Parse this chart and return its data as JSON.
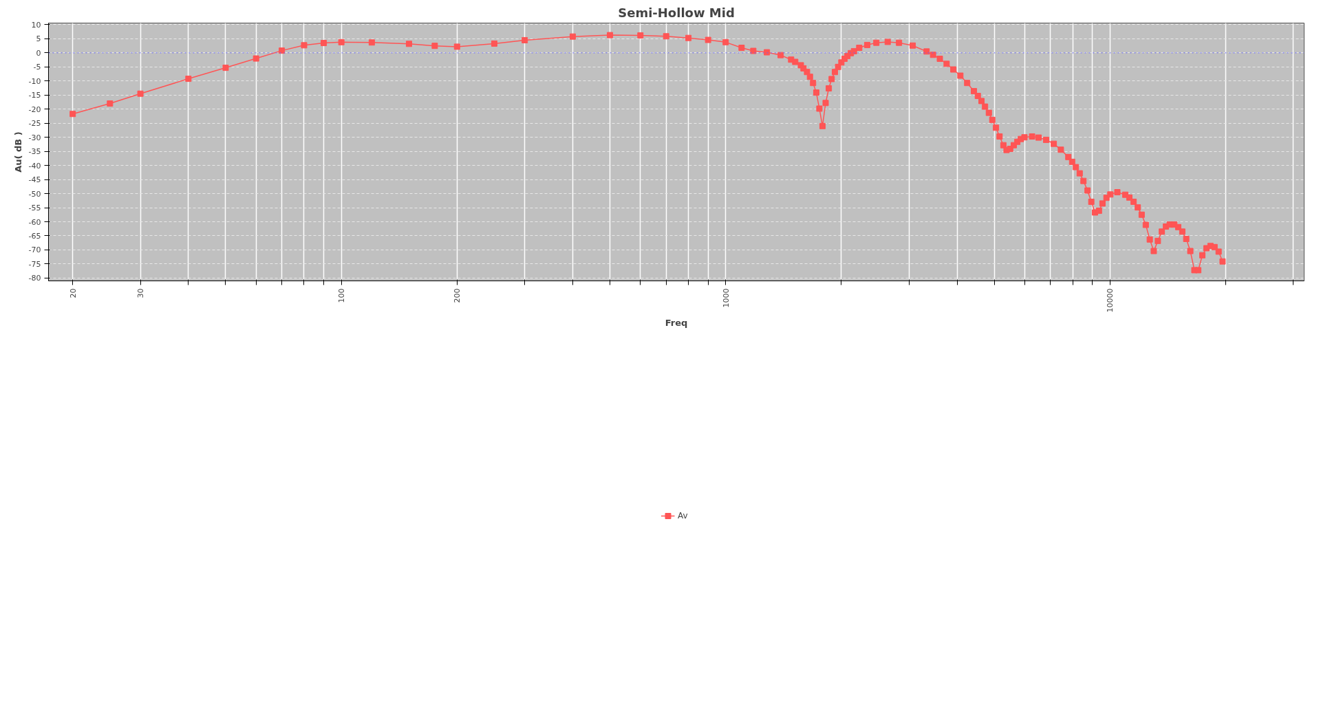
{
  "chart_data": {
    "type": "line",
    "title": "Semi-Hollow Mid",
    "xlabel": "Freq",
    "ylabel": "Au( dB )",
    "log": "x",
    "grid": true,
    "legend": "bottom",
    "marker": "square",
    "line_style": "solid",
    "xlim": [
      17.3,
      32000
    ],
    "ylim": [
      -81,
      10.6
    ],
    "xticks": [
      20,
      30,
      {
        "value": 40,
        "label": null
      },
      {
        "value": 50,
        "label": null
      },
      {
        "value": 60,
        "label": null
      },
      {
        "value": 70,
        "label": null
      },
      {
        "value": 80,
        "label": null
      },
      {
        "value": 90,
        "label": null
      },
      100,
      200,
      {
        "value": 300,
        "label": null
      },
      {
        "value": 400,
        "label": null
      },
      {
        "value": 500,
        "label": null
      },
      {
        "value": 600,
        "label": null
      },
      {
        "value": 700,
        "label": null
      },
      {
        "value": 800,
        "label": null
      },
      {
        "value": 900,
        "label": null
      },
      1000,
      {
        "value": 2000,
        "label": null
      },
      {
        "value": 3000,
        "label": null
      },
      {
        "value": 4000,
        "label": null
      },
      {
        "value": 5000,
        "label": null
      },
      {
        "value": 6000,
        "label": null
      },
      {
        "value": 7000,
        "label": null
      },
      {
        "value": 8000,
        "label": null
      },
      {
        "value": 9000,
        "label": null
      },
      10000,
      {
        "value": 20000,
        "label": null
      },
      {
        "value": 30000,
        "label": null
      }
    ],
    "yticks": [
      10,
      5,
      0,
      -5,
      -10,
      -15,
      -20,
      -25,
      -30,
      -35,
      -40,
      -45,
      -50,
      -55,
      -60,
      -65,
      -70,
      -75,
      -80
    ],
    "ref_lines": [
      {
        "axis": "y",
        "value": 0,
        "label": null,
        "color": "#6666ff",
        "line_style": "dotted"
      }
    ],
    "series": [
      {
        "name": "Av",
        "color": "#ff5555",
        "x": [
          20,
          25,
          30,
          40,
          50,
          60,
          70,
          80,
          90,
          100,
          120,
          150,
          175,
          200,
          250,
          300,
          400,
          500,
          600,
          700,
          800,
          900,
          1000,
          1100,
          1180,
          1280,
          1390,
          1480,
          1517,
          1569,
          1594,
          1628,
          1657,
          1688,
          1721,
          1753,
          1786,
          1820,
          1855,
          1887,
          1924,
          1961,
          2000,
          2038,
          2074,
          2117,
          2157,
          2226,
          2335,
          2466,
          2640,
          2825,
          3066,
          3333,
          3464,
          3608,
          3757,
          3912,
          4080,
          4250,
          4425,
          4530,
          4630,
          4730,
          4840,
          4940,
          5050,
          5160,
          5280,
          5380,
          5500,
          5620,
          5740,
          5860,
          5990,
          6270,
          6520,
          6820,
          7140,
          7450,
          7790,
          7970,
          8150,
          8340,
          8530,
          8740,
          8940,
          9140,
          9360,
          9560,
          9790,
          10020,
          10450,
          10960,
          11230,
          11520,
          11810,
          12090,
          12390,
          12690,
          13000,
          13320,
          13640,
          13980,
          14300,
          14700,
          15050,
          15420,
          15790,
          16180,
          16580,
          16970,
          17390,
          17820,
          18260,
          18710,
          19170,
          19630
        ],
        "values": [
          -21.7,
          -18.0,
          -14.5,
          -9.2,
          -5.3,
          -2.0,
          0.8,
          2.7,
          3.5,
          3.8,
          3.7,
          3.2,
          2.5,
          2.2,
          3.3,
          4.5,
          5.8,
          6.3,
          6.2,
          5.9,
          5.3,
          4.6,
          3.8,
          1.8,
          0.7,
          0.2,
          -0.8,
          -2.4,
          -3.2,
          -4.4,
          -5.5,
          -6.8,
          -8.5,
          -10.7,
          -14.1,
          -19.8,
          -26.0,
          -17.8,
          -12.6,
          -9.3,
          -6.8,
          -5.0,
          -3.4,
          -2.1,
          -1.1,
          -0.1,
          0.6,
          1.8,
          2.8,
          3.6,
          3.9,
          3.6,
          2.6,
          0.5,
          -0.7,
          -2.1,
          -3.9,
          -5.9,
          -8.1,
          -10.7,
          -13.6,
          -15.3,
          -17.1,
          -19.1,
          -21.3,
          -23.8,
          -26.6,
          -29.7,
          -32.8,
          -34.5,
          -34.1,
          -32.8,
          -31.6,
          -30.6,
          -30.0,
          -29.7,
          -30.1,
          -30.9,
          -32.3,
          -34.4,
          -37.0,
          -38.7,
          -40.6,
          -42.8,
          -45.5,
          -48.9,
          -52.9,
          -56.7,
          -56.1,
          -53.5,
          -51.5,
          -50.3,
          -49.5,
          -50.4,
          -51.4,
          -52.9,
          -54.9,
          -57.5,
          -61.1,
          -66.3,
          -70.4,
          -66.8,
          -63.5,
          -61.7,
          -61.0,
          -61.0,
          -61.9,
          -63.5,
          -66.1,
          -70.4,
          -77.2,
          -77.2,
          -71.9,
          -69.4,
          -68.6,
          -69.0,
          -70.6,
          -74.1
        ]
      }
    ]
  }
}
